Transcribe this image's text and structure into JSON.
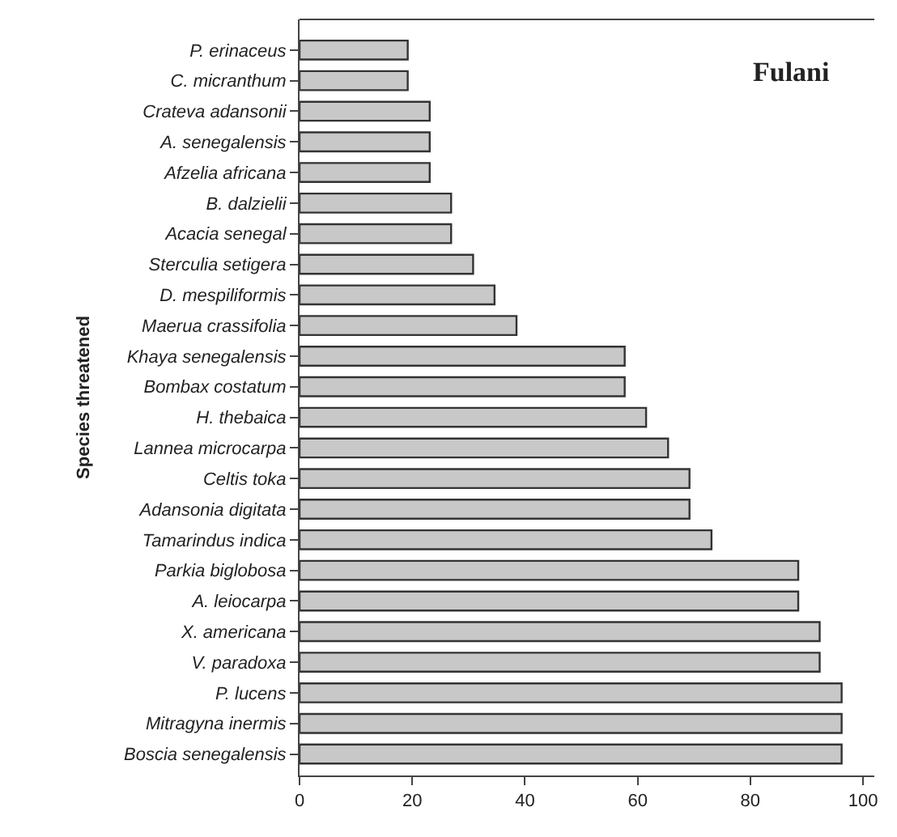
{
  "chart_data": {
    "type": "bar",
    "orientation": "horizontal",
    "ylabel": "Species threatened",
    "annotations": [
      "Fulani"
    ],
    "categories": [
      "P. erinaceus",
      "C. micranthum",
      "Crateva adansonii",
      "A. senegalensis",
      "Afzelia africana",
      "B. dalzielii",
      "Acacia senegal",
      "Sterculia setigera",
      "D. mespiliformis",
      "Maerua crassifolia",
      "Khaya senegalensis",
      "Bombax costatum",
      "H. thebaica",
      "Lannea microcarpa",
      "Celtis toka",
      "Adansonia digitata",
      "Tamarindus indica",
      "Parkia biglobosa",
      "A. leiocarpa",
      "X. americana",
      "V. paradoxa",
      "P. lucens",
      "Mitragyna inermis",
      "Boscia senegalensis"
    ],
    "values": [
      19.2,
      19.2,
      23.1,
      23.1,
      23.1,
      26.9,
      26.9,
      30.8,
      34.6,
      38.5,
      57.7,
      57.7,
      61.5,
      65.4,
      69.2,
      69.2,
      73.1,
      88.5,
      88.5,
      92.3,
      92.3,
      96.2,
      96.2,
      96.2
    ],
    "color": "#c8c8c8",
    "xlim": [
      0,
      102
    ],
    "xticks": [
      0,
      20,
      40,
      60,
      80,
      100
    ]
  }
}
